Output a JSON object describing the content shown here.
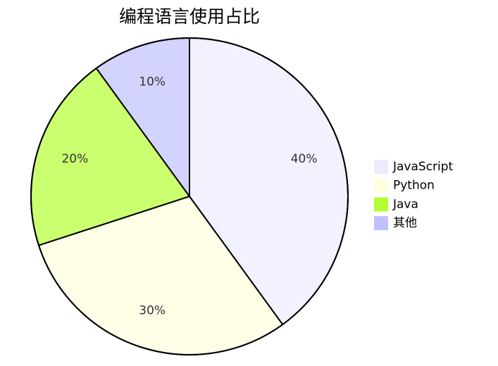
{
  "chart_data": {
    "type": "pie",
    "title": "编程语言使用占比",
    "categories": [
      "JavaScript",
      "Python",
      "Java",
      "其他"
    ],
    "values": [
      40,
      30,
      20,
      10
    ],
    "value_labels": [
      "40%",
      "30%",
      "20%",
      "10%"
    ],
    "colors": [
      "#ececff",
      "#ffffde",
      "#b3ff33",
      "#c0c0ff"
    ]
  }
}
